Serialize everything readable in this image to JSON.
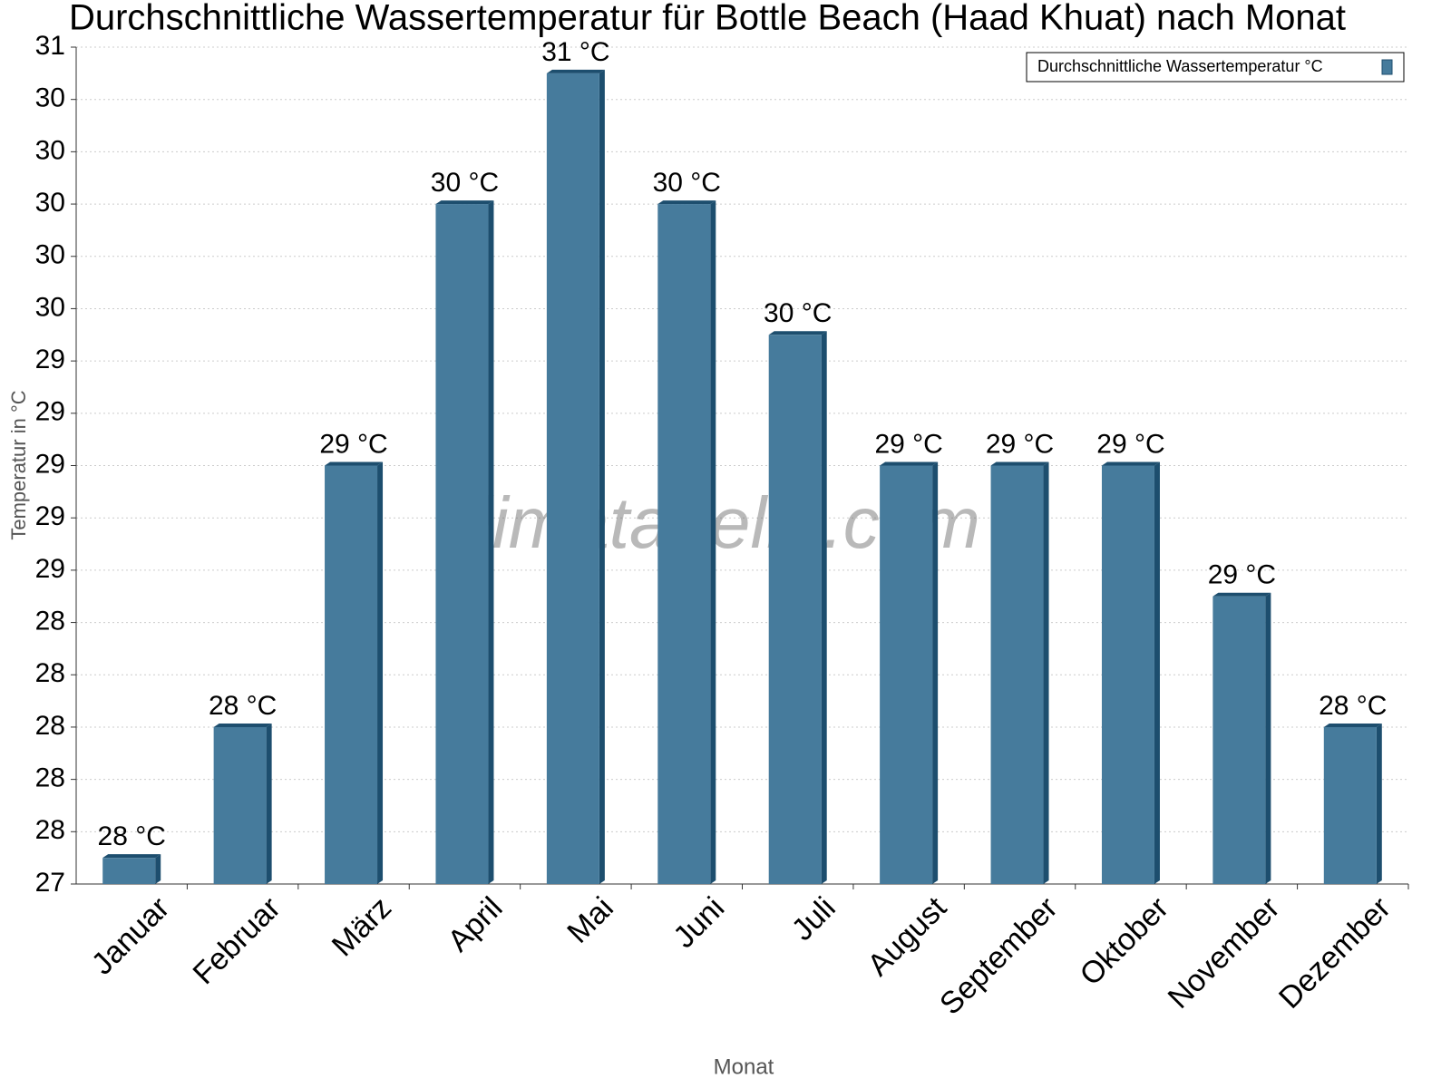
{
  "chart_data": {
    "type": "bar",
    "title": "Durchschnittliche Wassertemperatur für Bottle Beach (Haad Khuat) nach Monat",
    "x_label": "Monat",
    "y_label": "Temperatur in °C",
    "watermark": "klimatabelle.com",
    "categories": [
      "Januar",
      "Februar",
      "März",
      "April",
      "Mai",
      "Juni",
      "Juli",
      "August",
      "September",
      "Oktober",
      "November",
      "Dezember"
    ],
    "series": [
      {
        "name": "Durchschnittliche Wassertemperatur °C",
        "color": "#467b9c",
        "values": [
          27.5,
          28,
          29,
          30,
          30.5,
          30,
          29.5,
          29,
          29,
          29,
          28.5,
          28
        ],
        "value_labels": [
          "28 °C",
          "28 °C",
          "29 °C",
          "30 °C",
          "31 °C",
          "30 °C",
          "30 °C",
          "29 °C",
          "29 °C",
          "29 °C",
          "29 °C",
          "28 °C"
        ]
      }
    ],
    "ylim": [
      27.4,
      30.6
    ],
    "yticks": [
      {
        "value": 27.4,
        "label": "27"
      },
      {
        "value": 27.6,
        "label": "28"
      },
      {
        "value": 27.8,
        "label": "28"
      },
      {
        "value": 28.0,
        "label": "28"
      },
      {
        "value": 28.2,
        "label": "28"
      },
      {
        "value": 28.4,
        "label": "28"
      },
      {
        "value": 28.6,
        "label": "29"
      },
      {
        "value": 28.8,
        "label": "29"
      },
      {
        "value": 29.0,
        "label": "29"
      },
      {
        "value": 29.2,
        "label": "29"
      },
      {
        "value": 29.4,
        "label": "29"
      },
      {
        "value": 29.6,
        "label": "30"
      },
      {
        "value": 29.8,
        "label": "30"
      },
      {
        "value": 30.0,
        "label": "30"
      },
      {
        "value": 30.2,
        "label": "30"
      },
      {
        "value": 30.4,
        "label": "30"
      },
      {
        "value": 30.6,
        "label": "31"
      }
    ],
    "grid": true,
    "legend_position": "top-right"
  }
}
